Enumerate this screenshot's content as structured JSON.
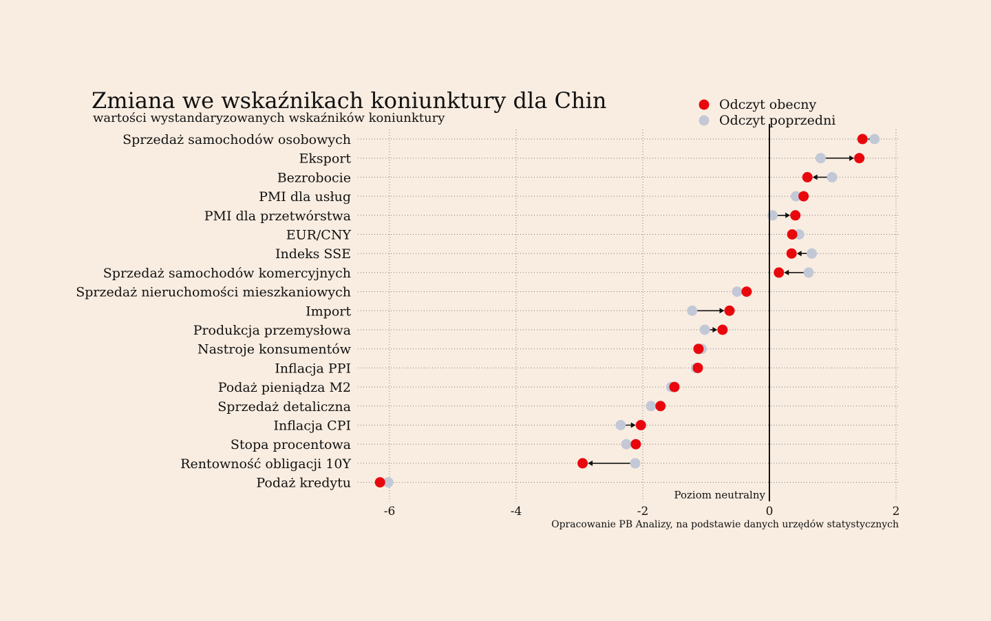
{
  "chart_data": {
    "type": "scatter",
    "title": "Zmiana we wskaźnikach koniunktury dla Chin",
    "subtitle": "wartości wystandaryzowanych wskaźników koniunktury",
    "legend": [
      {
        "name": "Odczyt obecny",
        "color": "#e8070d"
      },
      {
        "name": "Odczyt poprzedni",
        "color": "#c2c8d6"
      }
    ],
    "legend_position": "top-right",
    "neutral_label": "Poziom neutralny",
    "neutral_value": 0,
    "source": "Opracowanie PB Analizy, na podstawie danych urzędów statystycznych",
    "xlim": [
      -6.5,
      2
    ],
    "xticks": [
      -6,
      -4,
      -2,
      0,
      2
    ],
    "xtick_labels": [
      "-6",
      "-4",
      "-2",
      "0",
      "2"
    ],
    "grid": true,
    "categories": [
      "Sprzedaż samochodów osobowych",
      "Eksport",
      "Bezrobocie",
      "PMI dla usług",
      "PMI dla przetwórstwa",
      "EUR/CNY",
      "Indeks SSE",
      "Sprzedaż samochodów komercyjnych",
      "Sprzedaż nieruchomości mieszkaniowych",
      "Import",
      "Produkcja przemysłowa",
      "Nastroje konsumentów",
      "Inflacja PPI",
      "Podaż pieniądza M2",
      "Sprzedaż detaliczna",
      "Inflacja CPI",
      "Stopa procentowa",
      "Rentowność obligacji 10Y",
      "Podaż kredytu"
    ],
    "series": [
      {
        "name": "Odczyt obecny",
        "values": [
          1.47,
          1.42,
          0.6,
          0.54,
          0.41,
          0.36,
          0.35,
          0.15,
          -0.36,
          -0.63,
          -0.74,
          -1.12,
          -1.13,
          -1.5,
          -1.72,
          -2.03,
          -2.11,
          -2.95,
          -6.15
        ]
      },
      {
        "name": "Odczyt poprzedni",
        "values": [
          1.66,
          0.81,
          0.99,
          0.42,
          0.05,
          0.47,
          0.67,
          0.62,
          -0.51,
          -1.22,
          -1.02,
          -1.07,
          -1.16,
          -1.55,
          -1.87,
          -2.35,
          -2.26,
          -2.12,
          -6.02
        ]
      }
    ]
  }
}
